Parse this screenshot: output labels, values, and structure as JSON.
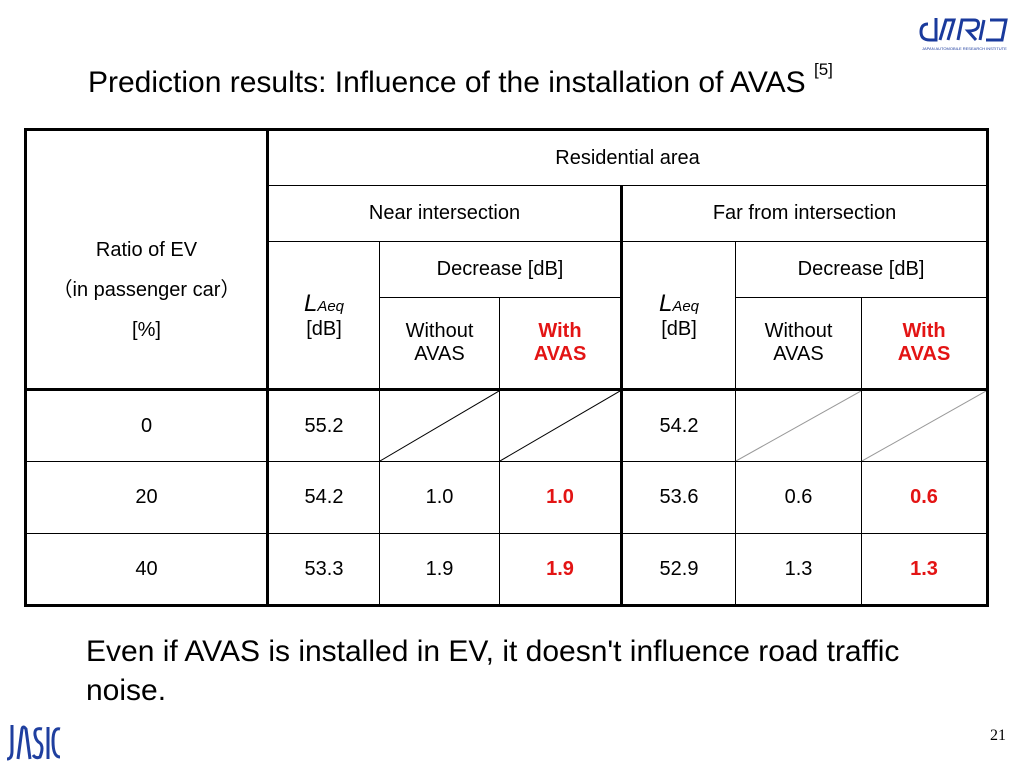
{
  "slide": {
    "title": "Prediction results: Influence of the installation of AVAS",
    "title_ref": "[5]",
    "logo_top": "JARI",
    "logo_bottom": "JASIC",
    "logo_top_tagline": "JAPAN AUTOMOBILE RESEARCH INSTITUTE",
    "page_number": "21",
    "conclusion": "Even if AVAS is installed in EV, it doesn't influence road traffic noise."
  },
  "table": {
    "ratio_header": [
      "Ratio of EV",
      "（in passenger car）",
      "[%]"
    ],
    "area_header": "Residential area",
    "near_header": "Near intersection",
    "far_header": "Far from intersection",
    "laeq_main": "L",
    "laeq_sub": "Aeq",
    "laeq_unit": "[dB]",
    "decrease_header": "Decrease [dB]",
    "without_avas": [
      "Without",
      "AVAS"
    ],
    "with_avas": [
      "With",
      "AVAS"
    ],
    "rows": [
      {
        "ratio": "0",
        "near_laeq": "55.2",
        "near_without": "",
        "near_with": "",
        "far_laeq": "54.2",
        "far_without": "",
        "far_with": ""
      },
      {
        "ratio": "20",
        "near_laeq": "54.2",
        "near_without": "1.0",
        "near_with": "1.0",
        "far_laeq": "53.6",
        "far_without": "0.6",
        "far_with": "0.6"
      },
      {
        "ratio": "40",
        "near_laeq": "53.3",
        "near_without": "1.9",
        "near_with": "1.9",
        "far_laeq": "52.9",
        "far_without": "1.3",
        "far_with": "1.3"
      }
    ]
  },
  "colors": {
    "with_avas": "#e31414",
    "jari_blue": "#1a3a9c",
    "jasic_blue": "#1f3f9f"
  }
}
